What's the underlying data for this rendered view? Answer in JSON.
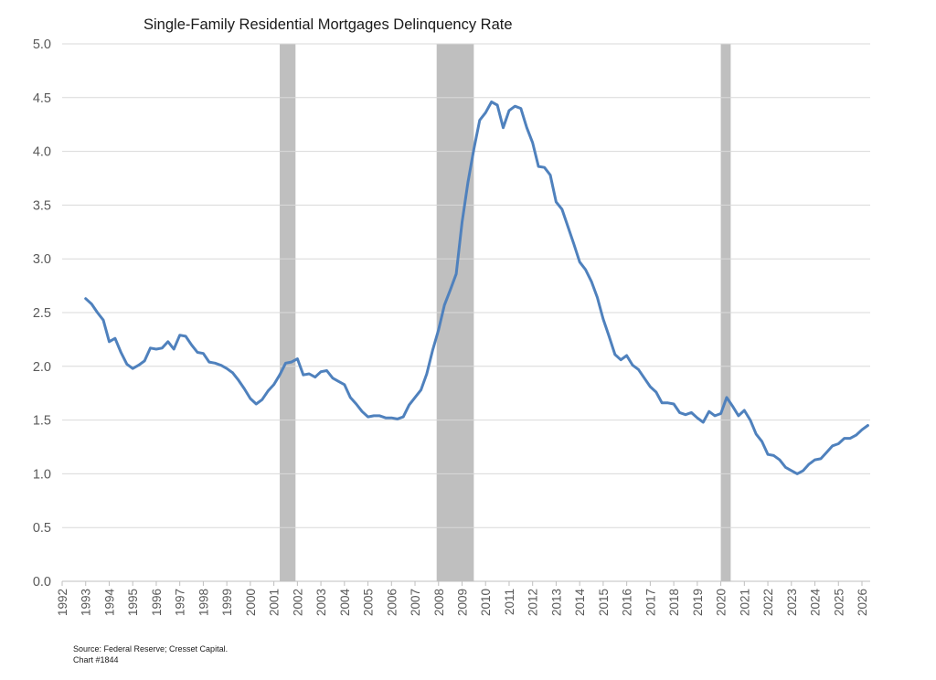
{
  "chart_data": {
    "type": "line",
    "title": "Single-Family Residential Mortgages Delinquency Rate",
    "xlabel": "",
    "ylabel": "",
    "xlim": [
      1992,
      2026.35
    ],
    "ylim": [
      0,
      5
    ],
    "y_ticks": [
      0.0,
      0.5,
      1.0,
      1.5,
      2.0,
      2.5,
      3.0,
      3.5,
      4.0,
      4.5,
      5.0
    ],
    "x_ticks": [
      1992,
      1993,
      1994,
      1995,
      1996,
      1997,
      1998,
      1999,
      2000,
      2001,
      2002,
      2003,
      2004,
      2005,
      2006,
      2007,
      2008,
      2009,
      2010,
      2011,
      2012,
      2013,
      2014,
      2015,
      2016,
      2017,
      2018,
      2019,
      2020,
      2021,
      2022,
      2023,
      2024,
      2025,
      2026
    ],
    "grid": true,
    "legend": "none",
    "line_color": "#4f81bd",
    "recession_color": "#bfbfbf",
    "recessions": [
      {
        "start": 2001.25,
        "end": 2001.92
      },
      {
        "start": 2007.92,
        "end": 2009.5
      },
      {
        "start": 2020.0,
        "end": 2020.42
      }
    ],
    "series": [
      {
        "x": [
          1993.0,
          1993.25,
          1993.5,
          1993.75,
          1994.0,
          1994.25,
          1994.5,
          1994.75,
          1995.0,
          1995.25,
          1995.5,
          1995.75,
          1996.0,
          1996.25,
          1996.5,
          1996.75,
          1997.0,
          1997.25,
          1997.5,
          1997.75,
          1998.0,
          1998.25,
          1998.5,
          1998.75,
          1999.0,
          1999.25,
          1999.5,
          1999.75,
          2000.0,
          2000.25,
          2000.5,
          2000.75,
          2001.0,
          2001.25,
          2001.5,
          2001.75,
          2002.0,
          2002.25,
          2002.5,
          2002.75,
          2003.0,
          2003.25,
          2003.5,
          2003.75,
          2004.0,
          2004.25,
          2004.5,
          2004.75,
          2005.0,
          2005.25,
          2005.5,
          2005.75,
          2006.0,
          2006.25,
          2006.5,
          2006.75,
          2007.0,
          2007.25,
          2007.5,
          2007.75,
          2008.0,
          2008.25,
          2008.5,
          2008.75,
          2009.0,
          2009.25,
          2009.5,
          2009.75,
          2010.0,
          2010.25,
          2010.5,
          2010.75,
          2011.0,
          2011.25,
          2011.5,
          2011.75,
          2012.0,
          2012.25,
          2012.5,
          2012.75,
          2013.0,
          2013.25,
          2013.5,
          2013.75,
          2014.0,
          2014.25,
          2014.5,
          2014.75,
          2015.0,
          2015.25,
          2015.5,
          2015.75,
          2016.0,
          2016.25,
          2016.5,
          2016.75,
          2017.0,
          2017.25,
          2017.5,
          2017.75,
          2018.0,
          2018.25,
          2018.5,
          2018.75,
          2019.0,
          2019.25,
          2019.5,
          2019.75,
          2020.0,
          2020.25,
          2020.5,
          2020.75,
          2021.0,
          2021.25,
          2021.5,
          2021.75,
          2022.0,
          2022.25,
          2022.5,
          2022.75,
          2023.0,
          2023.25,
          2023.5,
          2023.75,
          2024.0,
          2024.25,
          2024.5,
          2024.75,
          2025.0,
          2025.25,
          2025.5,
          2025.75,
          2026.0,
          2026.25
        ],
        "y": [
          2.63,
          2.58,
          2.5,
          2.43,
          2.23,
          2.26,
          2.13,
          2.02,
          1.98,
          2.01,
          2.05,
          2.17,
          2.16,
          2.17,
          2.23,
          2.16,
          2.29,
          2.28,
          2.2,
          2.13,
          2.12,
          2.04,
          2.03,
          2.01,
          1.98,
          1.94,
          1.87,
          1.79,
          1.7,
          1.65,
          1.69,
          1.77,
          1.83,
          1.92,
          2.03,
          2.04,
          2.07,
          1.92,
          1.93,
          1.9,
          1.95,
          1.96,
          1.89,
          1.86,
          1.83,
          1.71,
          1.65,
          1.58,
          1.53,
          1.54,
          1.54,
          1.52,
          1.52,
          1.51,
          1.53,
          1.64,
          1.71,
          1.78,
          1.93,
          2.15,
          2.34,
          2.57,
          2.71,
          2.86,
          3.34,
          3.71,
          4.02,
          4.29,
          4.36,
          4.46,
          4.43,
          4.22,
          4.38,
          4.42,
          4.4,
          4.22,
          4.08,
          3.86,
          3.85,
          3.78,
          3.53,
          3.46,
          3.3,
          3.14,
          2.97,
          2.9,
          2.79,
          2.64,
          2.44,
          2.28,
          2.11,
          2.06,
          2.1,
          2.01,
          1.97,
          1.89,
          1.81,
          1.76,
          1.66,
          1.66,
          1.65,
          1.57,
          1.55,
          1.57,
          1.52,
          1.48,
          1.58,
          1.54,
          1.56,
          1.71,
          1.63,
          1.54,
          1.59,
          1.5,
          1.37,
          1.3,
          1.18,
          1.17,
          1.13,
          1.06,
          1.03,
          1.0,
          1.03,
          1.09,
          1.13,
          1.14,
          1.2,
          1.26,
          1.28,
          1.33,
          1.33,
          1.36,
          1.41,
          1.45
        ]
      }
    ]
  },
  "footnote": {
    "source": "Source: Federal Reserve; Cresset Capital.",
    "chart_id": "Chart #1844"
  }
}
